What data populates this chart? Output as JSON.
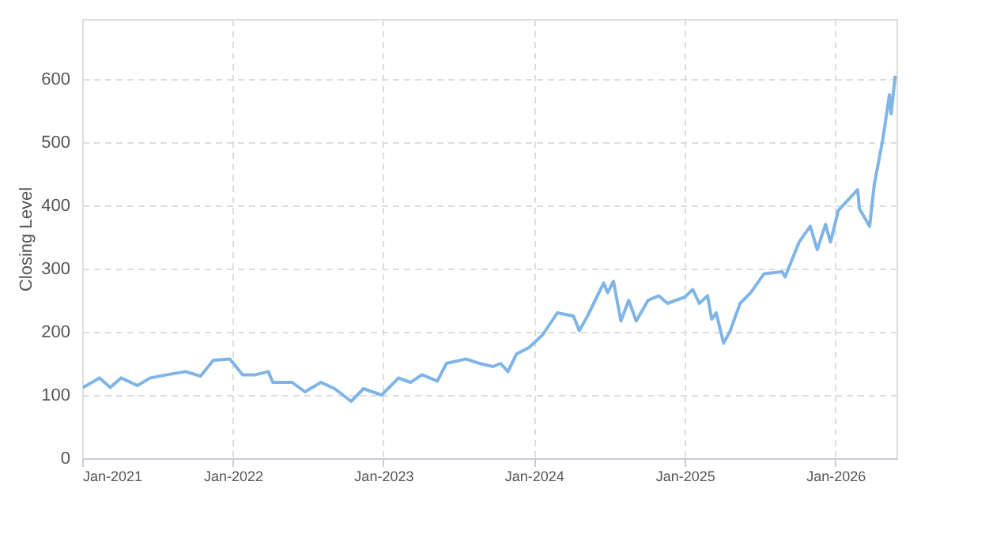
{
  "chart_data": {
    "type": "line",
    "ylabel": "Closing Level",
    "x": [
      "2021-01-03",
      "2021-02-12",
      "2021-03-10",
      "2021-04-05",
      "2021-05-15",
      "2021-06-15",
      "2021-07-25",
      "2021-09-08",
      "2021-10-15",
      "2021-11-15",
      "2021-12-25",
      "2022-01-25",
      "2022-02-25",
      "2022-03-28",
      "2022-04-08",
      "2022-05-25",
      "2022-06-25",
      "2022-08-03",
      "2022-09-05",
      "2022-10-15",
      "2022-11-14",
      "2022-12-28",
      "2023-02-07",
      "2023-03-08",
      "2023-04-05",
      "2023-05-12",
      "2023-06-03",
      "2023-07-20",
      "2023-08-22",
      "2023-09-24",
      "2023-10-12",
      "2023-10-30",
      "2023-11-20",
      "2023-12-20",
      "2024-01-22",
      "2024-02-27",
      "2024-04-06",
      "2024-04-20",
      "2024-05-10",
      "2024-06-18",
      "2024-06-28",
      "2024-07-12",
      "2024-07-30",
      "2024-08-18",
      "2024-09-05",
      "2024-10-04",
      "2024-10-30",
      "2024-11-20",
      "2025-01-01",
      "2025-01-20",
      "2025-02-05",
      "2025-02-25",
      "2025-03-07",
      "2025-03-18",
      "2025-04-05",
      "2025-04-20",
      "2025-05-15",
      "2025-06-10",
      "2025-07-12",
      "2025-08-25",
      "2025-09-01",
      "2025-10-05",
      "2025-11-01",
      "2025-11-18",
      "2025-12-08",
      "2025-12-20",
      "2026-01-08",
      "2026-02-24",
      "2026-02-28",
      "2026-03-25",
      "2026-04-05",
      "2026-04-26",
      "2026-05-12",
      "2026-05-16",
      "2026-05-26"
    ],
    "series": [
      {
        "color": "#7eb5e6",
        "values": [
          112,
          127,
          112,
          127,
          115,
          127,
          132,
          137,
          130,
          155,
          157,
          132,
          132,
          137,
          120,
          120,
          105,
          120,
          110,
          90,
          110,
          100,
          127,
          120,
          132,
          122,
          150,
          157,
          150,
          145,
          150,
          137,
          165,
          175,
          195,
          230,
          225,
          202,
          225,
          277,
          262,
          280,
          217,
          250,
          217,
          250,
          257,
          245,
          255,
          267,
          245,
          257,
          220,
          230,
          182,
          200,
          245,
          262,
          292,
          295,
          287,
          342,
          367,
          330,
          370,
          342,
          392,
          425,
          395,
          367,
          432,
          505,
          575,
          545,
          605
        ]
      }
    ],
    "xlim": [
      "2021-01-01",
      "2026-05-29"
    ],
    "ylim": [
      0,
      695
    ],
    "xticks": [
      {
        "value": "2021-01-01",
        "label": "Jan-2021"
      },
      {
        "value": "2022-01-01",
        "label": "Jan-2022"
      },
      {
        "value": "2023-01-01",
        "label": "Jan-2023"
      },
      {
        "value": "2024-01-01",
        "label": "Jan-2024"
      },
      {
        "value": "2025-01-01",
        "label": "Jan-2025"
      },
      {
        "value": "2026-01-01",
        "label": "Jan-2026"
      }
    ],
    "yticks": [
      0,
      100,
      200,
      300,
      400,
      500,
      600
    ],
    "grid": true,
    "marker": "none",
    "line_style": "solid"
  }
}
